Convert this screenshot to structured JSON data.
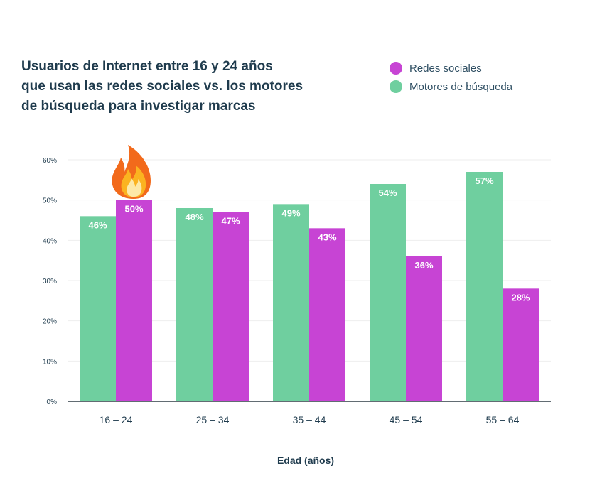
{
  "chart_data": {
    "type": "bar",
    "title_lines": [
      "Usuarios de Internet entre 16 y 24 años",
      "que usan las redes sociales vs. los motores",
      "de búsqueda para investigar marcas"
    ],
    "xlabel": "Edad (años)",
    "ylabel": "",
    "ylim": [
      0,
      60
    ],
    "yticks": [
      "0%",
      "10%",
      "20%",
      "30%",
      "40%",
      "50%",
      "60%"
    ],
    "categories": [
      "16 – 24",
      "25 – 34",
      "35 – 44",
      "45 – 54",
      "55 – 64"
    ],
    "series": [
      {
        "name": "Motores de búsqueda",
        "color": "#6fcf9f",
        "values": [
          46,
          48,
          49,
          54,
          57
        ],
        "labels": [
          "46%",
          "48%",
          "49%",
          "54%",
          "57%"
        ]
      },
      {
        "name": "Redes sociales",
        "color": "#c744d4",
        "values": [
          50,
          47,
          43,
          36,
          28
        ],
        "labels": [
          "50%",
          "47%",
          "43%",
          "36%",
          "28%"
        ]
      }
    ],
    "legend_order": [
      1,
      0
    ],
    "legend_position": "top-right",
    "grid": true,
    "highlight_icon": "fire-icon"
  }
}
